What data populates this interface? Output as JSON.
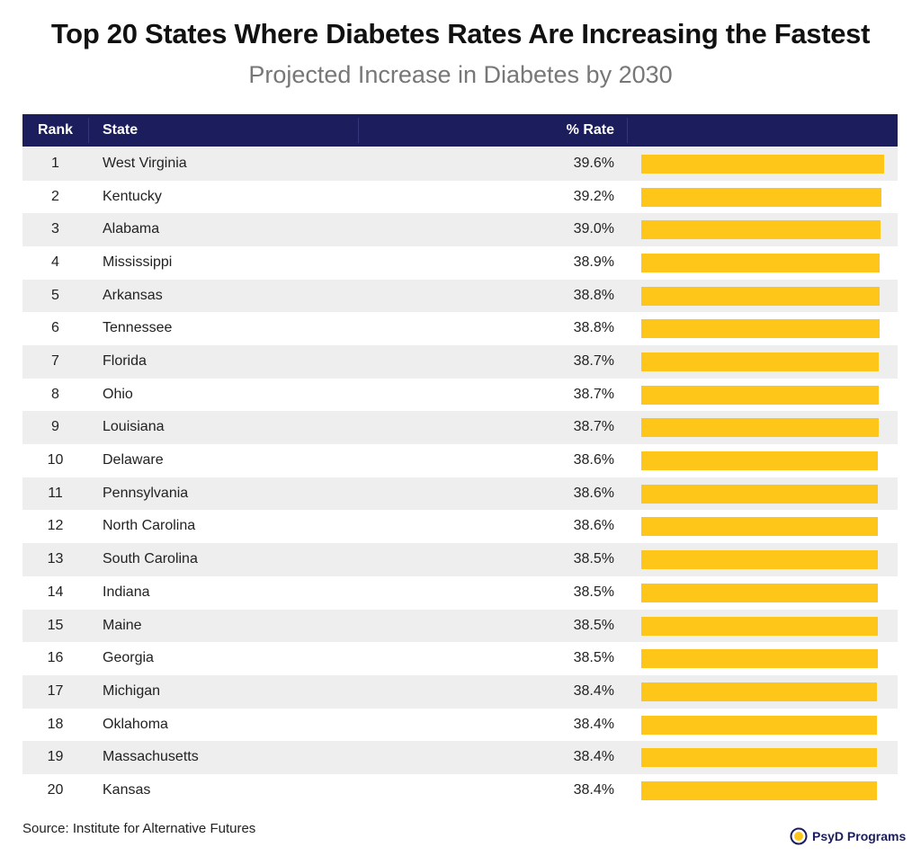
{
  "title": "Top 20 States Where Diabetes Rates Are Increasing the Fastest",
  "subtitle": "Projected Increase in Diabetes by 2030",
  "table": {
    "columns": [
      "Rank",
      "State",
      "% Rate"
    ],
    "bar_color": "#ffc61a",
    "rows": [
      {
        "rank": "1",
        "state": "West Virginia",
        "rate": 39.6,
        "rate_label": "39.6%"
      },
      {
        "rank": "2",
        "state": "Kentucky",
        "rate": 39.2,
        "rate_label": "39.2%"
      },
      {
        "rank": "3",
        "state": "Alabama",
        "rate": 39.0,
        "rate_label": "39.0%"
      },
      {
        "rank": "4",
        "state": "Mississippi",
        "rate": 38.9,
        "rate_label": "38.9%"
      },
      {
        "rank": "5",
        "state": "Arkansas",
        "rate": 38.8,
        "rate_label": "38.8%"
      },
      {
        "rank": "6",
        "state": "Tennessee",
        "rate": 38.8,
        "rate_label": "38.8%"
      },
      {
        "rank": "7",
        "state": "Florida",
        "rate": 38.7,
        "rate_label": "38.7%"
      },
      {
        "rank": "8",
        "state": "Ohio",
        "rate": 38.7,
        "rate_label": "38.7%"
      },
      {
        "rank": "9",
        "state": "Louisiana",
        "rate": 38.7,
        "rate_label": "38.7%"
      },
      {
        "rank": "10",
        "state": "Delaware",
        "rate": 38.6,
        "rate_label": "38.6%"
      },
      {
        "rank": "11",
        "state": "Pennsylvania",
        "rate": 38.6,
        "rate_label": "38.6%"
      },
      {
        "rank": "12",
        "state": "North Carolina",
        "rate": 38.6,
        "rate_label": "38.6%"
      },
      {
        "rank": "13",
        "state": "South Carolina",
        "rate": 38.5,
        "rate_label": "38.5%"
      },
      {
        "rank": "14",
        "state": "Indiana",
        "rate": 38.5,
        "rate_label": "38.5%"
      },
      {
        "rank": "15",
        "state": "Maine",
        "rate": 38.5,
        "rate_label": "38.5%"
      },
      {
        "rank": "16",
        "state": "Georgia",
        "rate": 38.5,
        "rate_label": "38.5%"
      },
      {
        "rank": "17",
        "state": "Michigan",
        "rate": 38.4,
        "rate_label": "38.4%"
      },
      {
        "rank": "18",
        "state": "Oklahoma",
        "rate": 38.4,
        "rate_label": "38.4%"
      },
      {
        "rank": "19",
        "state": "Massachusetts",
        "rate": 38.4,
        "rate_label": "38.4%"
      },
      {
        "rank": "20",
        "state": "Kansas",
        "rate": 38.4,
        "rate_label": "38.4%"
      }
    ]
  },
  "source": "Source: Institute for Alternative Futures",
  "logo": "PsyD Programs"
}
